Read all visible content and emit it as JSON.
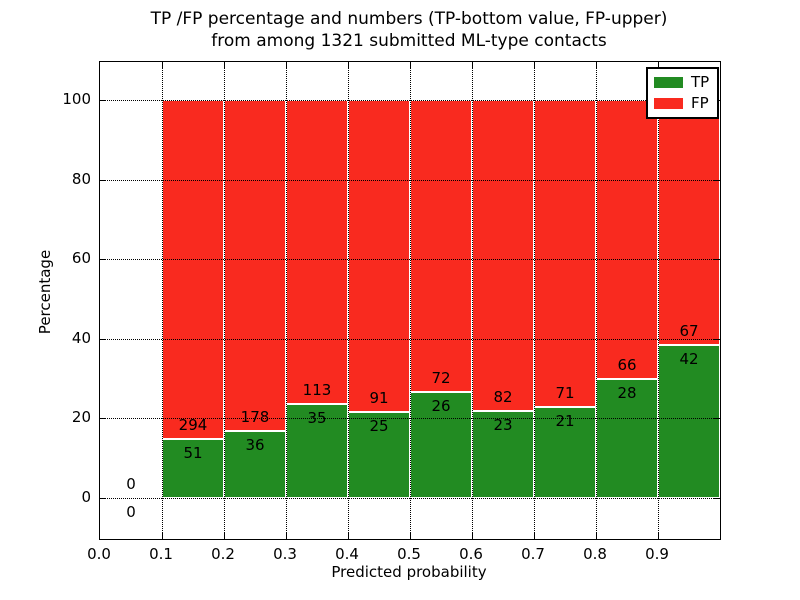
{
  "title": {
    "line1": "TP /FP percentage and numbers (TP-bottom value, FP-upper)",
    "line2": "from among 1321 submitted ML-type contacts"
  },
  "axes": {
    "xlabel": "Predicted probability",
    "ylabel": "Percentage",
    "x_tick_labels": [
      "0.0",
      "0.1",
      "0.2",
      "0.3",
      "0.4",
      "0.5",
      "0.6",
      "0.7",
      "0.8",
      "0.9"
    ],
    "x_tick_values": [
      0.0,
      0.1,
      0.2,
      0.3,
      0.4,
      0.5,
      0.6,
      0.7,
      0.8,
      0.9
    ],
    "y_tick_labels": [
      "0",
      "20",
      "40",
      "60",
      "80",
      "100"
    ],
    "y_tick_values": [
      0,
      20,
      40,
      60,
      80,
      100
    ]
  },
  "legend": {
    "items": [
      {
        "label": "TP",
        "color": "#228b22"
      },
      {
        "label": "FP",
        "color": "#f92a1f"
      }
    ]
  },
  "colors": {
    "tp": "#228b22",
    "fp": "#f92a1f",
    "grid": "#000000",
    "background": "#ffffff"
  },
  "chart_data": {
    "type": "bar",
    "stacked": true,
    "normalized_to_percent": 100,
    "title": "TP /FP percentage and numbers (TP-bottom value, FP-upper) from among 1321 submitted ML-type contacts",
    "xlabel": "Predicted probability",
    "ylabel": "Percentage",
    "xlim": [
      0.0,
      1.0
    ],
    "ylim_display": [
      -10.3,
      109.5
    ],
    "grid": true,
    "legend_position": "upper right",
    "total_contacts": 1321,
    "series_names": [
      "TP",
      "FP"
    ],
    "bins": [
      {
        "x_start": 0.0,
        "x_end": 0.1,
        "tp_count": 0,
        "fp_count": 0,
        "tp_pct": 0,
        "fp_pct": 0
      },
      {
        "x_start": 0.1,
        "x_end": 0.2,
        "tp_count": 51,
        "fp_count": 294,
        "tp_pct": 14.78,
        "fp_pct": 85.22
      },
      {
        "x_start": 0.2,
        "x_end": 0.3,
        "tp_count": 36,
        "fp_count": 178,
        "tp_pct": 16.82,
        "fp_pct": 83.18
      },
      {
        "x_start": 0.3,
        "x_end": 0.4,
        "tp_count": 35,
        "fp_count": 113,
        "tp_pct": 23.65,
        "fp_pct": 76.35
      },
      {
        "x_start": 0.4,
        "x_end": 0.5,
        "tp_count": 25,
        "fp_count": 91,
        "tp_pct": 21.55,
        "fp_pct": 78.45
      },
      {
        "x_start": 0.5,
        "x_end": 0.6,
        "tp_count": 26,
        "fp_count": 72,
        "tp_pct": 26.53,
        "fp_pct": 73.47
      },
      {
        "x_start": 0.6,
        "x_end": 0.7,
        "tp_count": 23,
        "fp_count": 82,
        "tp_pct": 21.9,
        "fp_pct": 78.1
      },
      {
        "x_start": 0.7,
        "x_end": 0.8,
        "tp_count": 21,
        "fp_count": 71,
        "tp_pct": 22.83,
        "fp_pct": 77.17
      },
      {
        "x_start": 0.8,
        "x_end": 0.9,
        "tp_count": 28,
        "fp_count": 66,
        "tp_pct": 29.79,
        "fp_pct": 70.21
      },
      {
        "x_start": 0.9,
        "x_end": 1.0,
        "tp_count": 42,
        "fp_count": 67,
        "tp_pct": 38.53,
        "fp_pct": 61.47
      }
    ]
  }
}
